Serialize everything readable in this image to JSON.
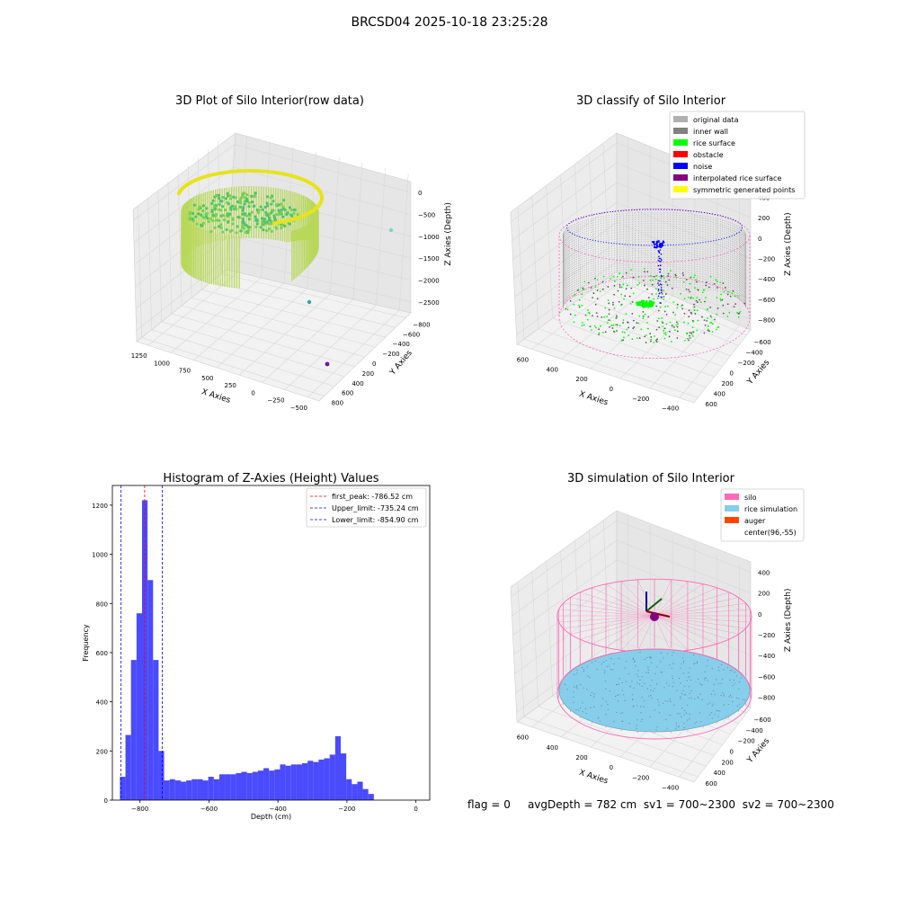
{
  "suptitle": "BRCSD04 2025-10-18 23:25:28",
  "footer": {
    "flag": "flag = 0",
    "avg_depth": "avgDepth = 782 cm",
    "sv1": "sv1 = 700~2300",
    "sv2": "sv2 = 700~2300"
  },
  "colors": {
    "histogram_bar": "#4a4aff",
    "first_peak_line": "#ff0000",
    "limit_lines": "#0000ff",
    "original_data": "#b0b0b0",
    "inner_wall": "#808080",
    "rice_surface": "#00ff00",
    "obstacle": "#ff0000",
    "noise": "#0000ff",
    "interpolated_rice_surface": "#800080",
    "symmetric_generated_points": "#ffff00",
    "silo": "#ff69b4",
    "rice_simulation": "#87ceeb",
    "auger": "#ff4500"
  },
  "chart_data": [
    {
      "type": "scatter",
      "subtype": "3d",
      "title": "3D Plot of Silo Interior(row data)",
      "xlabel": "X Axies",
      "ylabel": "Y Axies",
      "zlabel": "Z Axies (Depth)",
      "xticks": [
        "−500",
        "−250",
        "0",
        "250",
        "500",
        "750",
        "1000",
        "1250"
      ],
      "yticks": [
        "800",
        "600",
        "400",
        "200",
        "0",
        "−200",
        "−400",
        "−600",
        "−800"
      ],
      "zticks": [
        "0",
        "−500",
        "−1000",
        "−1500",
        "−2000",
        "−2500"
      ],
      "xlim": [
        -550,
        1300
      ],
      "ylim": [
        -800,
        800
      ],
      "zlim": [
        -2800,
        0
      ],
      "points": [
        {
          "x": 1250,
          "y": 750,
          "z": -1200
        },
        {
          "x": 800,
          "y": -150,
          "z": -2600
        },
        {
          "x": 1200,
          "y": -600,
          "z": -2700
        }
      ],
      "colormap": "viridis"
    },
    {
      "type": "scatter",
      "subtype": "3d",
      "title": "3D classify of Silo Interior",
      "xlabel": "X Axies",
      "ylabel": "Y Axies",
      "zlabel": "Z Axies (Depth)",
      "xticks": [
        "−400",
        "−200",
        "0",
        "200",
        "400",
        "600"
      ],
      "yticks": [
        "600",
        "400",
        "200",
        "0",
        "−200",
        "−400",
        "−600"
      ],
      "zticks": [
        "400",
        "200",
        "0",
        "−200",
        "−400",
        "−600",
        "−800"
      ],
      "xlim": [
        -500,
        700
      ],
      "ylim": [
        -650,
        650
      ],
      "zlim": [
        -900,
        450
      ],
      "legend": [
        "original data",
        "inner wall",
        "rice surface",
        "obstacle",
        "noise",
        "interpolated rice surface",
        "symmetric generated points"
      ],
      "legend_location": "upper right"
    },
    {
      "type": "bar",
      "subtype": "histogram",
      "title": "Histogram of Z-Axies (Height) Values",
      "xlabel": "Depth (cm)",
      "ylabel": "Frequency",
      "xlim": [
        -880,
        40
      ],
      "ylim": [
        0,
        1280
      ],
      "xticks": [
        "−800",
        "−600",
        "−400",
        "−200",
        "0"
      ],
      "yticks": [
        "0",
        "200",
        "400",
        "600",
        "800",
        "1000",
        "1200"
      ],
      "bin_start": -858,
      "bin_width": 16,
      "values": [
        95,
        265,
        570,
        760,
        1220,
        895,
        570,
        200,
        80,
        85,
        80,
        75,
        80,
        85,
        85,
        80,
        95,
        85,
        105,
        105,
        105,
        110,
        115,
        110,
        115,
        120,
        130,
        120,
        125,
        145,
        140,
        145,
        145,
        150,
        160,
        155,
        165,
        170,
        185,
        260,
        190,
        85,
        65,
        75,
        45,
        25
      ],
      "vlines": [
        {
          "label": "first_peak: -786.52 cm",
          "x": -786.52,
          "color": "red"
        },
        {
          "label": "Upper_limit: -735.24 cm",
          "x": -735.24,
          "color": "blue"
        },
        {
          "label": "Lower_limit: -854.90 cm",
          "x": -854.9,
          "color": "blue"
        }
      ],
      "legend_location": "upper right"
    },
    {
      "type": "scatter",
      "subtype": "3d",
      "title": "3D simulation of Silo Interior",
      "xlabel": "X Axies",
      "ylabel": "Y Axies",
      "zlabel": "Z Axies (Depth)",
      "xticks": [
        "−400",
        "−200",
        "0",
        "200",
        "400",
        "600"
      ],
      "yticks": [
        "600",
        "400",
        "200",
        "0",
        "−200",
        "−400",
        "−600"
      ],
      "zticks": [
        "400",
        "200",
        "0",
        "−200",
        "−400",
        "−600",
        "−800"
      ],
      "xlim": [
        -500,
        700
      ],
      "ylim": [
        -650,
        650
      ],
      "zlim": [
        -900,
        450
      ],
      "legend": [
        "silo",
        "rice simulation",
        "auger",
        "center(96,-55)"
      ],
      "legend_location": "upper right"
    }
  ]
}
